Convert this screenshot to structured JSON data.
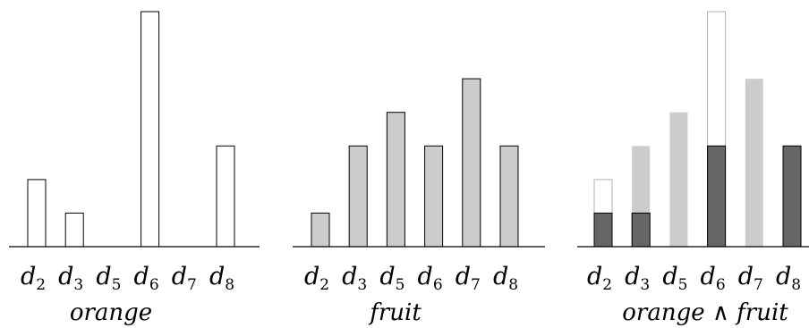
{
  "chart_data": [
    {
      "type": "bar",
      "caption": "orange",
      "categories": [
        {
          "base": "d",
          "sub": "2"
        },
        {
          "base": "d",
          "sub": "3"
        },
        {
          "base": "d",
          "sub": "5"
        },
        {
          "base": "d",
          "sub": "6"
        },
        {
          "base": "d",
          "sub": "7"
        },
        {
          "base": "d",
          "sub": "8"
        }
      ],
      "values": [
        2,
        1,
        0,
        7,
        0,
        3
      ],
      "ylim": [
        0,
        7
      ],
      "fill": "#ffffff"
    },
    {
      "type": "bar",
      "caption": "fruit",
      "categories": [
        {
          "base": "d",
          "sub": "2"
        },
        {
          "base": "d",
          "sub": "3"
        },
        {
          "base": "d",
          "sub": "5"
        },
        {
          "base": "d",
          "sub": "6"
        },
        {
          "base": "d",
          "sub": "7"
        },
        {
          "base": "d",
          "sub": "8"
        }
      ],
      "values": [
        1,
        3,
        4,
        3,
        5,
        3
      ],
      "ylim": [
        0,
        7
      ],
      "fill": "#cccccc"
    },
    {
      "type": "bar",
      "caption": "orange ∧ fruit",
      "categories": [
        {
          "base": "d",
          "sub": "2"
        },
        {
          "base": "d",
          "sub": "3"
        },
        {
          "base": "d",
          "sub": "5"
        },
        {
          "base": "d",
          "sub": "6"
        },
        {
          "base": "d",
          "sub": "7"
        },
        {
          "base": "d",
          "sub": "8"
        }
      ],
      "series": [
        {
          "values": [
            2,
            1,
            0,
            7,
            0,
            3
          ],
          "style": "outline"
        },
        {
          "values": [
            1,
            3,
            4,
            3,
            5,
            3
          ],
          "style": "fill",
          "color": "#cccccc"
        },
        {
          "values": [
            1,
            1,
            0,
            3,
            0,
            3
          ],
          "style": "fill",
          "color": "#666666"
        }
      ],
      "ylim": [
        0,
        7
      ]
    }
  ]
}
